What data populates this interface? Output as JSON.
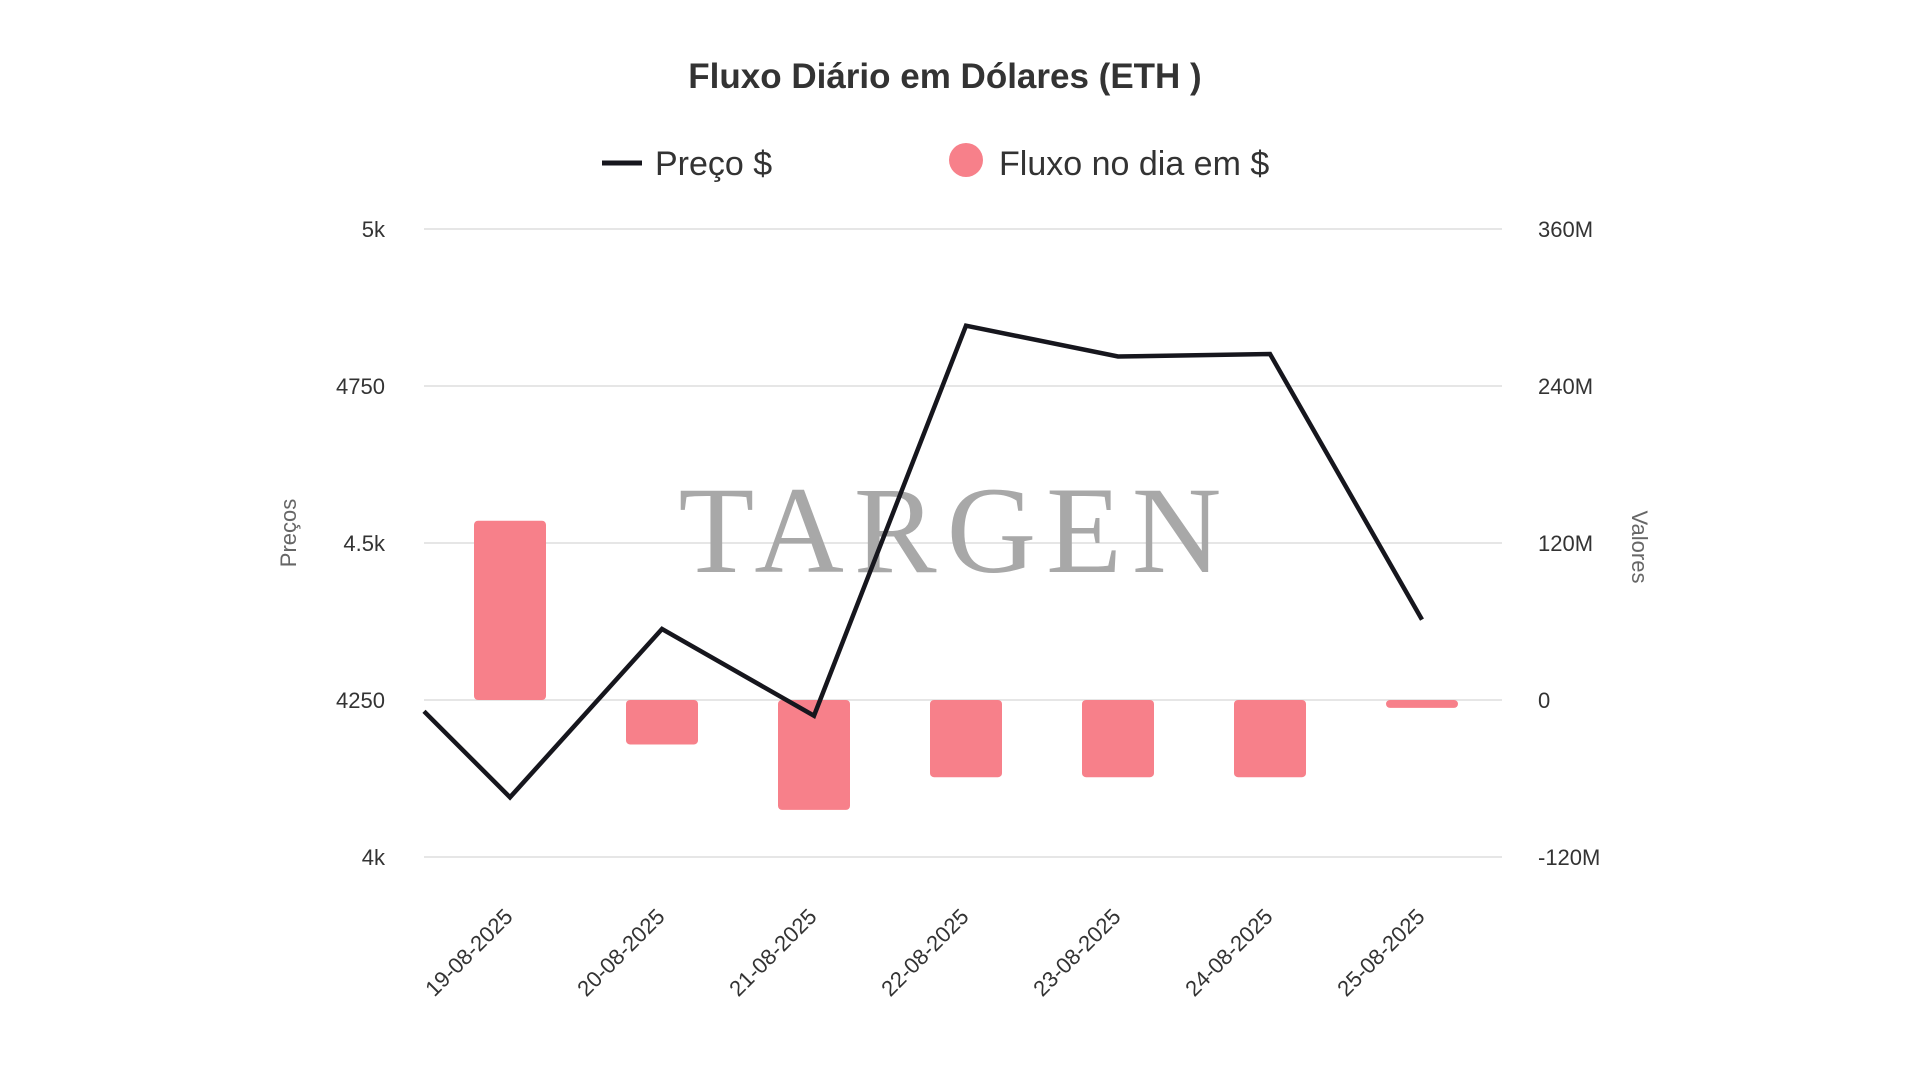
{
  "watermark": "TARGEN",
  "chart_data": {
    "type": "bar",
    "title": "Fluxo Diário em Dólares (ETH )",
    "categories": [
      "19-08-2025",
      "20-08-2025",
      "21-08-2025",
      "22-08-2025",
      "23-08-2025",
      "24-08-2025",
      "25-08-2025"
    ],
    "legend_position": "top",
    "grid": true,
    "y_left": {
      "label": "Preços",
      "range": [
        4000,
        5000
      ],
      "ticks": [
        4000,
        4250,
        4500,
        4750,
        5000
      ],
      "tick_labels": [
        "4k",
        "4250",
        "4.5k",
        "4750",
        "5k"
      ]
    },
    "y_right": {
      "label": "Valores",
      "range": [
        -120000000,
        360000000
      ],
      "ticks": [
        -120000000,
        0,
        120000000,
        240000000,
        360000000
      ],
      "tick_labels": [
        "-120M",
        "0",
        "120M",
        "240M",
        "360M"
      ]
    },
    "series": [
      {
        "name": "Preço $",
        "type": "line",
        "axis": "left",
        "color": "#16161d",
        "values": [
          4095,
          4363,
          4225,
          4846,
          4797,
          4801,
          4378
        ],
        "start_value": 4232
      },
      {
        "name": "Fluxo no dia em $",
        "type": "bar",
        "axis": "right",
        "color": "#f7808a",
        "values": [
          137000000,
          -34000000,
          -84000000,
          -59000000,
          -59000000,
          -59000000,
          -6000000
        ]
      }
    ]
  }
}
